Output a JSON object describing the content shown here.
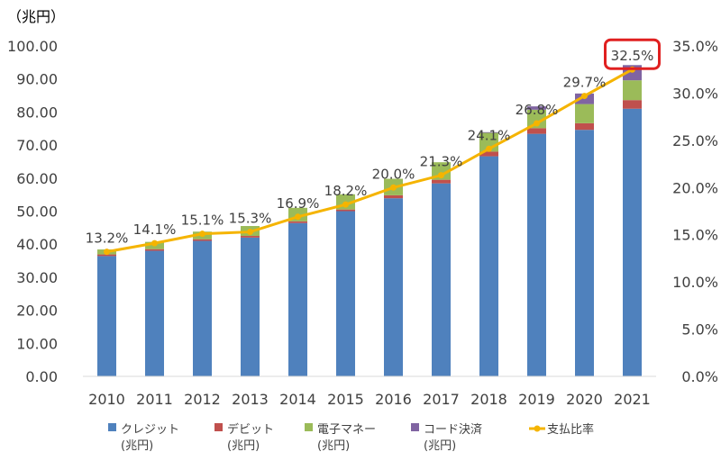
{
  "chart_data": {
    "type": "bar",
    "subtype": "stacked-bar-with-line",
    "y_unit_label": "（兆円）",
    "categories": [
      "2010",
      "2011",
      "2012",
      "2013",
      "2014",
      "2015",
      "2016",
      "2017",
      "2018",
      "2019",
      "2020",
      "2021"
    ],
    "series": [
      {
        "name": "クレジット\n(兆円)",
        "color": "#4f81bd",
        "axis": "left",
        "values": [
          36.4,
          38.0,
          41.0,
          42.0,
          46.4,
          50.0,
          53.9,
          58.4,
          66.6,
          73.4,
          74.6,
          81.0
        ]
      },
      {
        "name": "デビット\n(兆円)",
        "color": "#c0504d",
        "axis": "left",
        "values": [
          0.5,
          0.5,
          0.5,
          0.5,
          0.5,
          0.5,
          0.9,
          1.1,
          1.4,
          1.7,
          2.0,
          2.6
        ]
      },
      {
        "name": "電子マネー\n(兆円)",
        "color": "#9bbb59",
        "axis": "left",
        "values": [
          1.5,
          2.2,
          2.3,
          3.0,
          4.1,
          4.6,
          5.0,
          5.3,
          5.7,
          5.6,
          5.8,
          6.0
        ]
      },
      {
        "name": "コード決済\n(兆円)",
        "color": "#8064a2",
        "axis": "left",
        "values": [
          0,
          0,
          0,
          0,
          0,
          0,
          0,
          0,
          0.2,
          1.0,
          3.2,
          4.6
        ]
      },
      {
        "name": "支払比率",
        "type": "line",
        "color": "#f5b400",
        "axis": "right",
        "values": [
          13.2,
          14.1,
          15.1,
          15.3,
          16.9,
          18.2,
          20.0,
          21.3,
          24.1,
          26.8,
          29.7,
          32.5
        ],
        "labels": [
          "13.2%",
          "14.1%",
          "15.1%",
          "15.3%",
          "16.9%",
          "18.2%",
          "20.0%",
          "21.3%",
          "24.1%",
          "26.8%",
          "29.7%",
          "32.5%"
        ]
      }
    ],
    "y_left": {
      "min": 0,
      "max": 100,
      "step": 10,
      "ticks": [
        "0.00",
        "10.00",
        "20.00",
        "30.00",
        "40.00",
        "50.00",
        "60.00",
        "70.00",
        "80.00",
        "90.00",
        "100.00"
      ]
    },
    "y_right": {
      "min": 0,
      "max": 35,
      "step": 5,
      "ticks": [
        "0.0%",
        "5.0%",
        "10.0%",
        "15.0%",
        "20.0%",
        "25.0%",
        "30.0%",
        "35.0%"
      ]
    },
    "grid": false,
    "legend_position": "bottom",
    "highlight": {
      "index": 11,
      "color": "#e02020"
    }
  }
}
